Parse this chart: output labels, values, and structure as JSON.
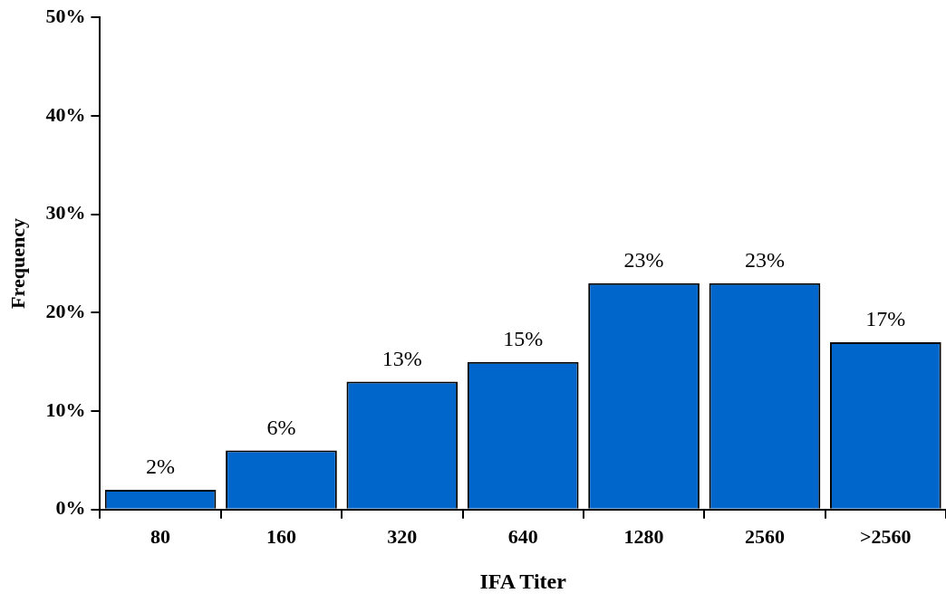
{
  "chart_data": {
    "type": "bar",
    "xlabel": "IFA Titer",
    "ylabel": "Frequency",
    "categories": [
      "80",
      "160",
      "320",
      "640",
      "1280",
      "2560",
      ">2560"
    ],
    "values": [
      2,
      6,
      13,
      15,
      23,
      23,
      17
    ],
    "value_labels": [
      "2%",
      "6%",
      "13%",
      "15%",
      "23%",
      "23%",
      "17%"
    ],
    "color": "#0066cc",
    "ylim": [
      0,
      50
    ],
    "yticks": [
      {
        "value": 0,
        "label": "0%"
      },
      {
        "value": 10,
        "label": "10%"
      },
      {
        "value": 20,
        "label": "20%"
      },
      {
        "value": 30,
        "label": "30%"
      },
      {
        "value": 40,
        "label": "40%"
      },
      {
        "value": 50,
        "label": "50%"
      }
    ],
    "grid": false,
    "legend": false
  }
}
